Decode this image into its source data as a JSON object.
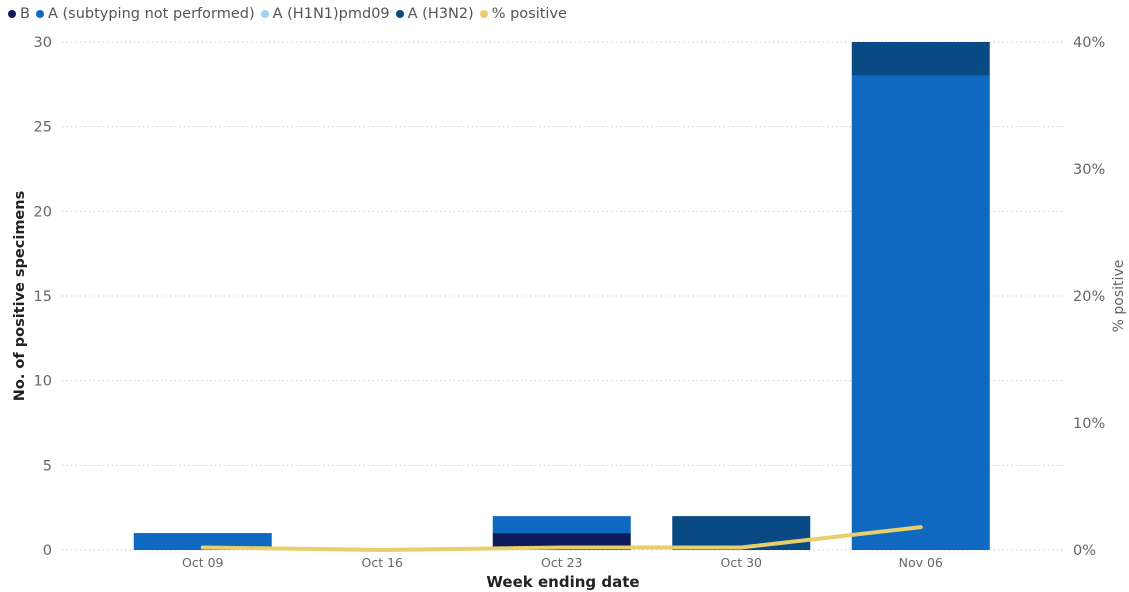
{
  "chart_data": {
    "type": "bar",
    "stacked": true,
    "xlabel": "Week ending date",
    "ylabel": "No. of positive specimens",
    "y2label": "% positive",
    "categories": [
      "Oct 09",
      "Oct 16",
      "Oct 23",
      "Oct 30",
      "Nov 06"
    ],
    "ylim": [
      0,
      30
    ],
    "yticks": [
      0,
      5,
      10,
      15,
      20,
      25,
      30
    ],
    "y2lim": [
      0,
      40
    ],
    "y2ticks": [
      0,
      10,
      20,
      30,
      40
    ],
    "y2tick_suffix": "%",
    "grid": true,
    "legend_position": "top-left",
    "series": [
      {
        "name": "B",
        "kind": "bar",
        "color": "#0d1a5c",
        "values": [
          0,
          0,
          1,
          0,
          0
        ]
      },
      {
        "name": "A (subtyping not performed)",
        "kind": "bar",
        "color": "#0f69c0",
        "values": [
          1,
          0,
          1,
          0,
          28
        ]
      },
      {
        "name": "A (H1N1)pmd09",
        "kind": "bar",
        "color": "#9fd0f5",
        "values": [
          0,
          0,
          0,
          0,
          0
        ]
      },
      {
        "name": "A (H3N2)",
        "kind": "bar",
        "color": "#0a4a84",
        "values": [
          0,
          0,
          0,
          2,
          2
        ]
      },
      {
        "name": "% positive",
        "kind": "line",
        "axis": "right",
        "color": "#e8cf6a",
        "values": [
          0.2,
          0.0,
          0.2,
          0.2,
          1.8
        ]
      }
    ]
  }
}
